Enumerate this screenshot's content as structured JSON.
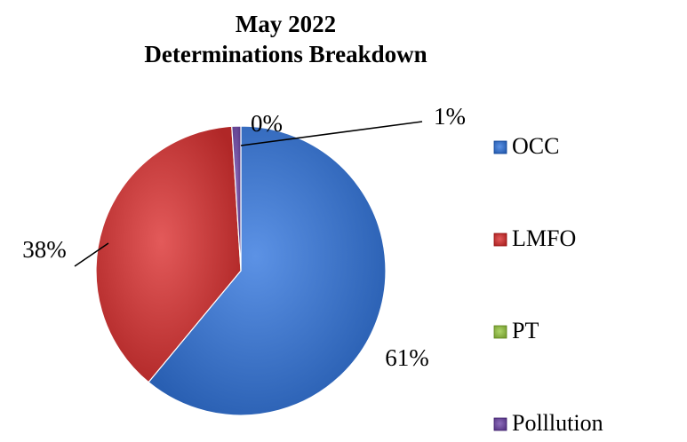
{
  "chart_data": {
    "type": "pie",
    "title": "May 2022",
    "subtitle": "Determinations Breakdown",
    "categories": [
      "OCC",
      "LMFO",
      "PT",
      "Polllution"
    ],
    "values": [
      61,
      38,
      0,
      1
    ],
    "labels": [
      "61%",
      "38%",
      "0%",
      "1%"
    ],
    "colors": [
      "#3d73c6",
      "#c43b3b",
      "#8fb64a",
      "#6e4e9c"
    ],
    "legend": "right"
  }
}
